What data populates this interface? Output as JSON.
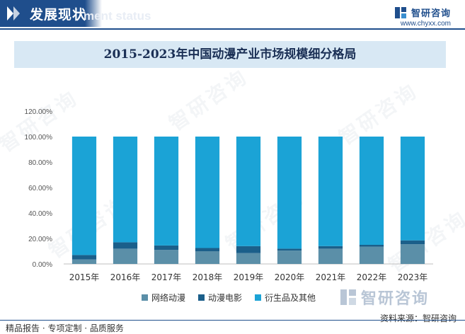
{
  "header": {
    "section_title": "发展现状",
    "section_subtitle": "ment status",
    "brand_name": "智研咨询",
    "brand_url": "www.chyxx.com"
  },
  "colors": {
    "header_blue": "#1f4e8c",
    "title_band": "#d8e8f4",
    "series_1": "#5b8fa8",
    "series_2": "#1b5f8a",
    "series_3": "#1ba3d6"
  },
  "icons": [
    "arrow-right-icon",
    "brand-logo-icon"
  ],
  "footer": {
    "source": "资料来源：智研咨询",
    "note": "精品报告 · 专项定制 · 品质服务",
    "watermark": "智研咨询"
  },
  "chart_data": {
    "type": "bar",
    "stacked": true,
    "title": "2015-2023年中国动漫产业市场规模细分格局",
    "categories": [
      "2015年",
      "2016年",
      "2017年",
      "2018年",
      "2019年",
      "2020年",
      "2021年",
      "2022年",
      "2023年"
    ],
    "series": [
      {
        "name": "网络动漫",
        "color": "#5b8fa8",
        "values": [
          3.5,
          12.0,
          11.0,
          10.0,
          8.5,
          10.5,
          12.0,
          13.5,
          15.5
        ]
      },
      {
        "name": "动漫电影",
        "color": "#1b5f8a",
        "values": [
          3.5,
          5.0,
          3.5,
          2.5,
          5.5,
          1.5,
          2.0,
          1.5,
          3.0
        ]
      },
      {
        "name": "衍生品及其他",
        "color": "#1ba3d6",
        "values": [
          93.0,
          83.0,
          85.5,
          87.5,
          86.0,
          88.0,
          86.0,
          85.0,
          81.5
        ]
      }
    ],
    "ylim": [
      0,
      120
    ],
    "yticks": [
      "0.00%",
      "20.00%",
      "40.00%",
      "60.00%",
      "80.00%",
      "100.00%",
      "120.00%"
    ],
    "ytick_values": [
      0,
      20,
      40,
      60,
      80,
      100,
      120
    ],
    "grid": false,
    "legend": "bottom"
  }
}
